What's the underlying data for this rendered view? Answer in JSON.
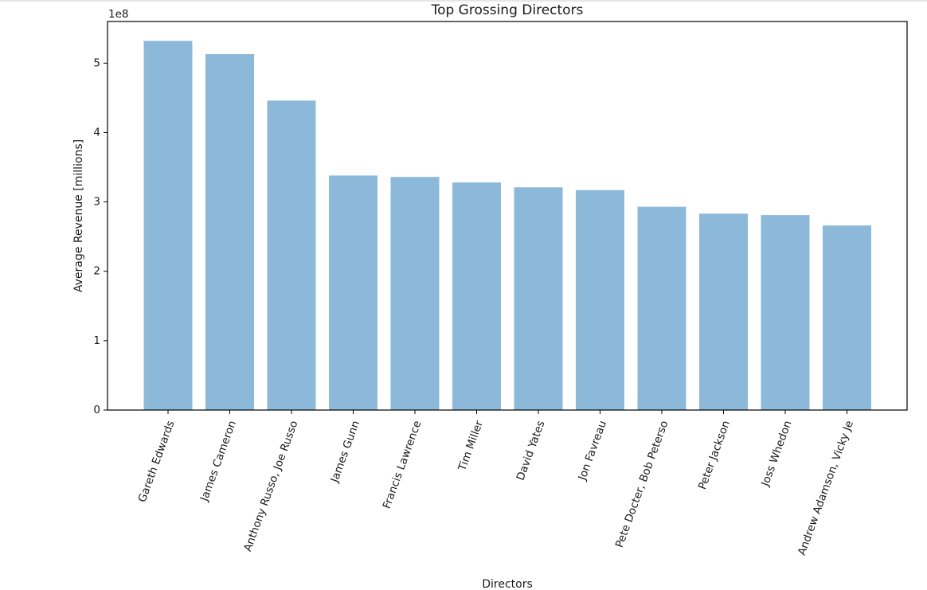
{
  "chart_data": {
    "type": "bar",
    "title": "Top Grossing Directors",
    "xlabel": "Directors",
    "ylabel": "Average Revenue [millions]",
    "y_offset_label": "1e8",
    "ylim": [
      0,
      5.6
    ],
    "yticks": [
      0,
      1,
      2,
      3,
      4,
      5
    ],
    "grid": false,
    "bar_color": "#8cb8d9",
    "categories": [
      "Gareth Edwards",
      "James Cameron",
      "Anthony Russo, Joe Russo",
      "James Gunn",
      "Francis Lawrence",
      "Tim Miller",
      "David Yates",
      "Jon Favreau",
      "Pete Docter, Bob Peterso",
      "Peter Jackson",
      "Joss Whedon",
      "Andrew Adamson, Vicky Je"
    ],
    "values": [
      5.32,
      5.13,
      4.46,
      3.38,
      3.36,
      3.28,
      3.21,
      3.17,
      2.93,
      2.83,
      2.81,
      2.66
    ]
  }
}
